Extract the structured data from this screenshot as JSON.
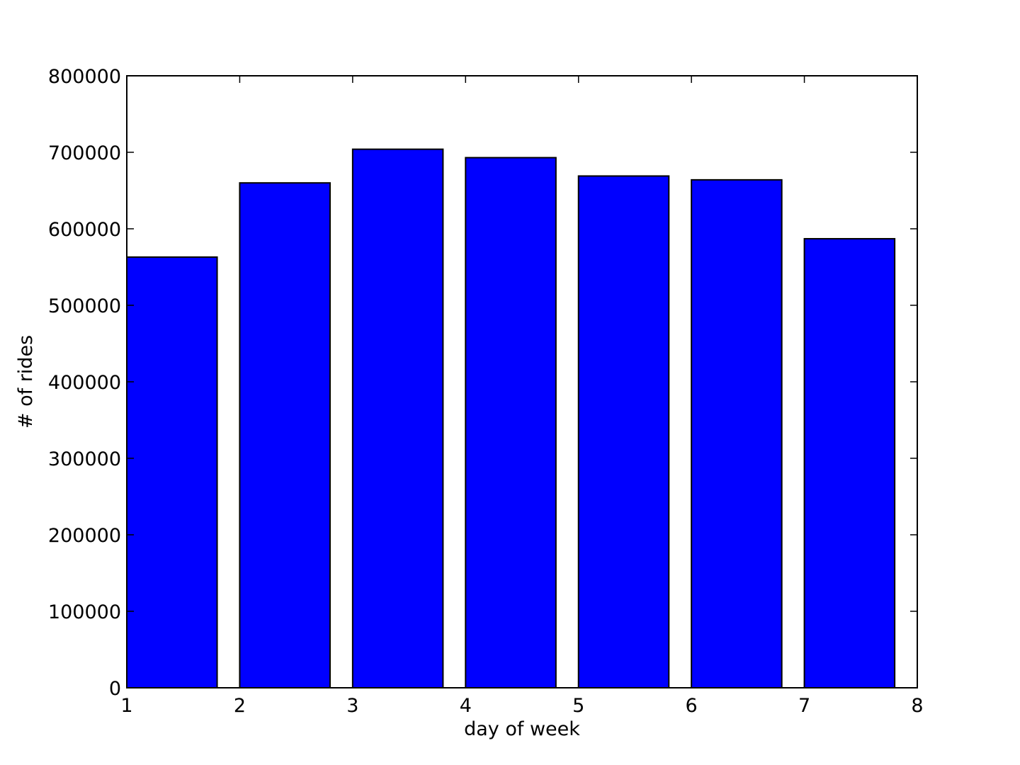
{
  "chart_data": {
    "type": "bar",
    "title": "",
    "xlabel": "day of week",
    "ylabel": "# of rides",
    "xlim": [
      1,
      8
    ],
    "ylim": [
      0,
      800000
    ],
    "x_ticks": [
      1,
      2,
      3,
      4,
      5,
      6,
      7,
      8
    ],
    "y_ticks": [
      0,
      100000,
      200000,
      300000,
      400000,
      500000,
      600000,
      700000,
      800000
    ],
    "bar_width": 0.8,
    "bar_color": "#0000ff",
    "edge_color": "#000000",
    "grid": false,
    "categories": [
      1,
      2,
      3,
      4,
      5,
      6,
      7
    ],
    "values": [
      563000,
      660000,
      704000,
      693000,
      669000,
      664000,
      587000
    ]
  }
}
